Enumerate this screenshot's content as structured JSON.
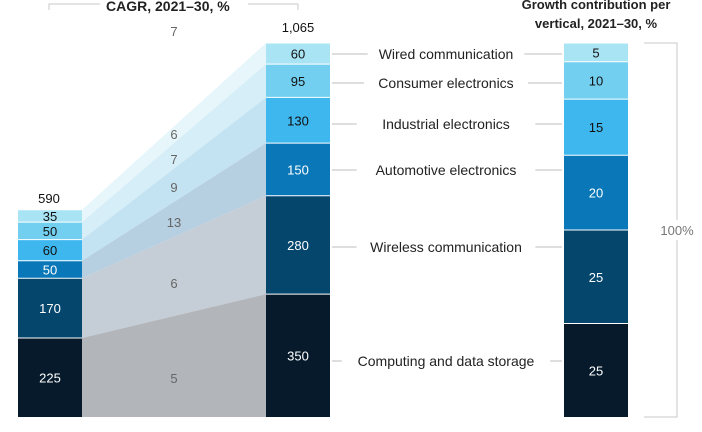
{
  "chart_data": {
    "type": "stacked-bar",
    "title": "CAGR, 2021–30, %",
    "right_title_line1": "Growth contribution per",
    "right_title_line2": "vertical, 2021–30, %",
    "right_total_label": "100%",
    "bar_2021_total": "590",
    "bar_2030_total": "1,065",
    "series": [
      {
        "name": "Computing and data storage",
        "v2021": 225,
        "v2030": 350,
        "cagr": 5,
        "contribution": 25,
        "color": "#061a2b",
        "flow_color": "#b2b5b9"
      },
      {
        "name": "Wireless communication",
        "v2021": 170,
        "v2030": 280,
        "cagr": 6,
        "contribution": 25,
        "color": "#05466d",
        "flow_color": "#c5cdd6"
      },
      {
        "name": "Automotive electronics",
        "v2021": 50,
        "v2030": 150,
        "cagr": 13,
        "contribution": 20,
        "color": "#0a78b8",
        "flow_color": "#b6cfe1"
      },
      {
        "name": "Industrial electronics",
        "v2021": 60,
        "v2030": 130,
        "cagr": 9,
        "contribution": 15,
        "color": "#3eb7ef",
        "flow_color": "#c4e3f2"
      },
      {
        "name": "Consumer electronics",
        "v2021": 50,
        "v2030": 95,
        "cagr": 7,
        "contribution": 10,
        "color": "#73cff0",
        "flow_color": "#d6eef8"
      },
      {
        "name": "Wired communication",
        "v2021": 35,
        "v2030": 60,
        "cagr": 6,
        "contribution": 5,
        "color": "#a9e4f5",
        "flow_color": "#e6f6fb"
      }
    ],
    "top_cagr": "7"
  }
}
